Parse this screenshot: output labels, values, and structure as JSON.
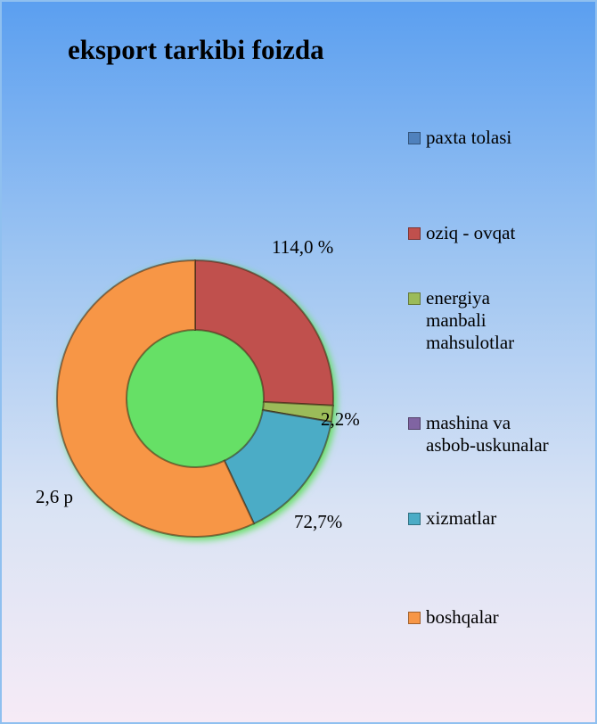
{
  "chart_data": {
    "type": "donut",
    "title": "eksport tarkibi foizda",
    "categories": [
      "paxta tolasi",
      "oziq - ovqat",
      "energiya\nmanbali\nmahsulotlar",
      "mashina va\nasbob-uskunalar",
      "xizmatlar",
      "boshqalar"
    ],
    "values": [
      0,
      25.8,
      1.9,
      0,
      15.3,
      57.0
    ],
    "colors": [
      "#4f81bd",
      "#c0504d",
      "#9bbb59",
      "#8064a2",
      "#4bacc6",
      "#f79646"
    ],
    "annotations": [
      "114,0 %",
      "2,2%",
      "72,7%",
      "2,6 р"
    ],
    "legend": "right"
  }
}
